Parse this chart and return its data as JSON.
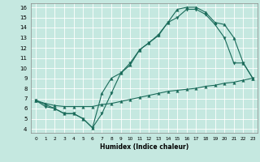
{
  "xlabel": "Humidex (Indice chaleur)",
  "bg_color": "#c5e8e0",
  "line_color": "#1a6b5a",
  "xlim": [
    -0.5,
    23.5
  ],
  "ylim": [
    3.6,
    16.4
  ],
  "xticks": [
    0,
    1,
    2,
    3,
    4,
    5,
    6,
    7,
    8,
    9,
    10,
    11,
    12,
    13,
    14,
    15,
    16,
    17,
    18,
    19,
    20,
    21,
    22,
    23
  ],
  "yticks": [
    4,
    5,
    6,
    7,
    8,
    9,
    10,
    11,
    12,
    13,
    14,
    15,
    16
  ],
  "line1_x": [
    0,
    1,
    2,
    3,
    4,
    5,
    6,
    7,
    8,
    9,
    10,
    11,
    12,
    13,
    14,
    15,
    16,
    17,
    18,
    19,
    20,
    21,
    22,
    23
  ],
  "line1_y": [
    6.8,
    6.2,
    6.0,
    5.5,
    5.5,
    5.0,
    4.1,
    5.5,
    7.5,
    9.5,
    10.5,
    11.8,
    12.5,
    13.2,
    14.5,
    15.0,
    15.8,
    15.8,
    15.3,
    14.3,
    13.0,
    10.5,
    10.5,
    9.0
  ],
  "line2_x": [
    0,
    2,
    3,
    4,
    5,
    6,
    7,
    8,
    9,
    10,
    11,
    12,
    13,
    14,
    15,
    16,
    17,
    18,
    19,
    20,
    21,
    22,
    23
  ],
  "line2_y": [
    6.8,
    6.0,
    5.5,
    5.5,
    5.0,
    4.1,
    7.5,
    9.0,
    9.5,
    10.3,
    11.8,
    12.5,
    13.3,
    14.5,
    15.8,
    16.0,
    16.0,
    15.5,
    14.5,
    14.3,
    13.0,
    10.5,
    9.0
  ],
  "line3_x": [
    0,
    1,
    2,
    3,
    4,
    5,
    6,
    7,
    8,
    9,
    10,
    11,
    12,
    13,
    14,
    15,
    16,
    17,
    18,
    19,
    20,
    21,
    22,
    23
  ],
  "line3_y": [
    6.8,
    6.5,
    6.3,
    6.2,
    6.2,
    6.2,
    6.2,
    6.4,
    6.5,
    6.7,
    6.9,
    7.1,
    7.3,
    7.5,
    7.7,
    7.8,
    7.9,
    8.0,
    8.2,
    8.3,
    8.5,
    8.6,
    8.8,
    9.0
  ]
}
